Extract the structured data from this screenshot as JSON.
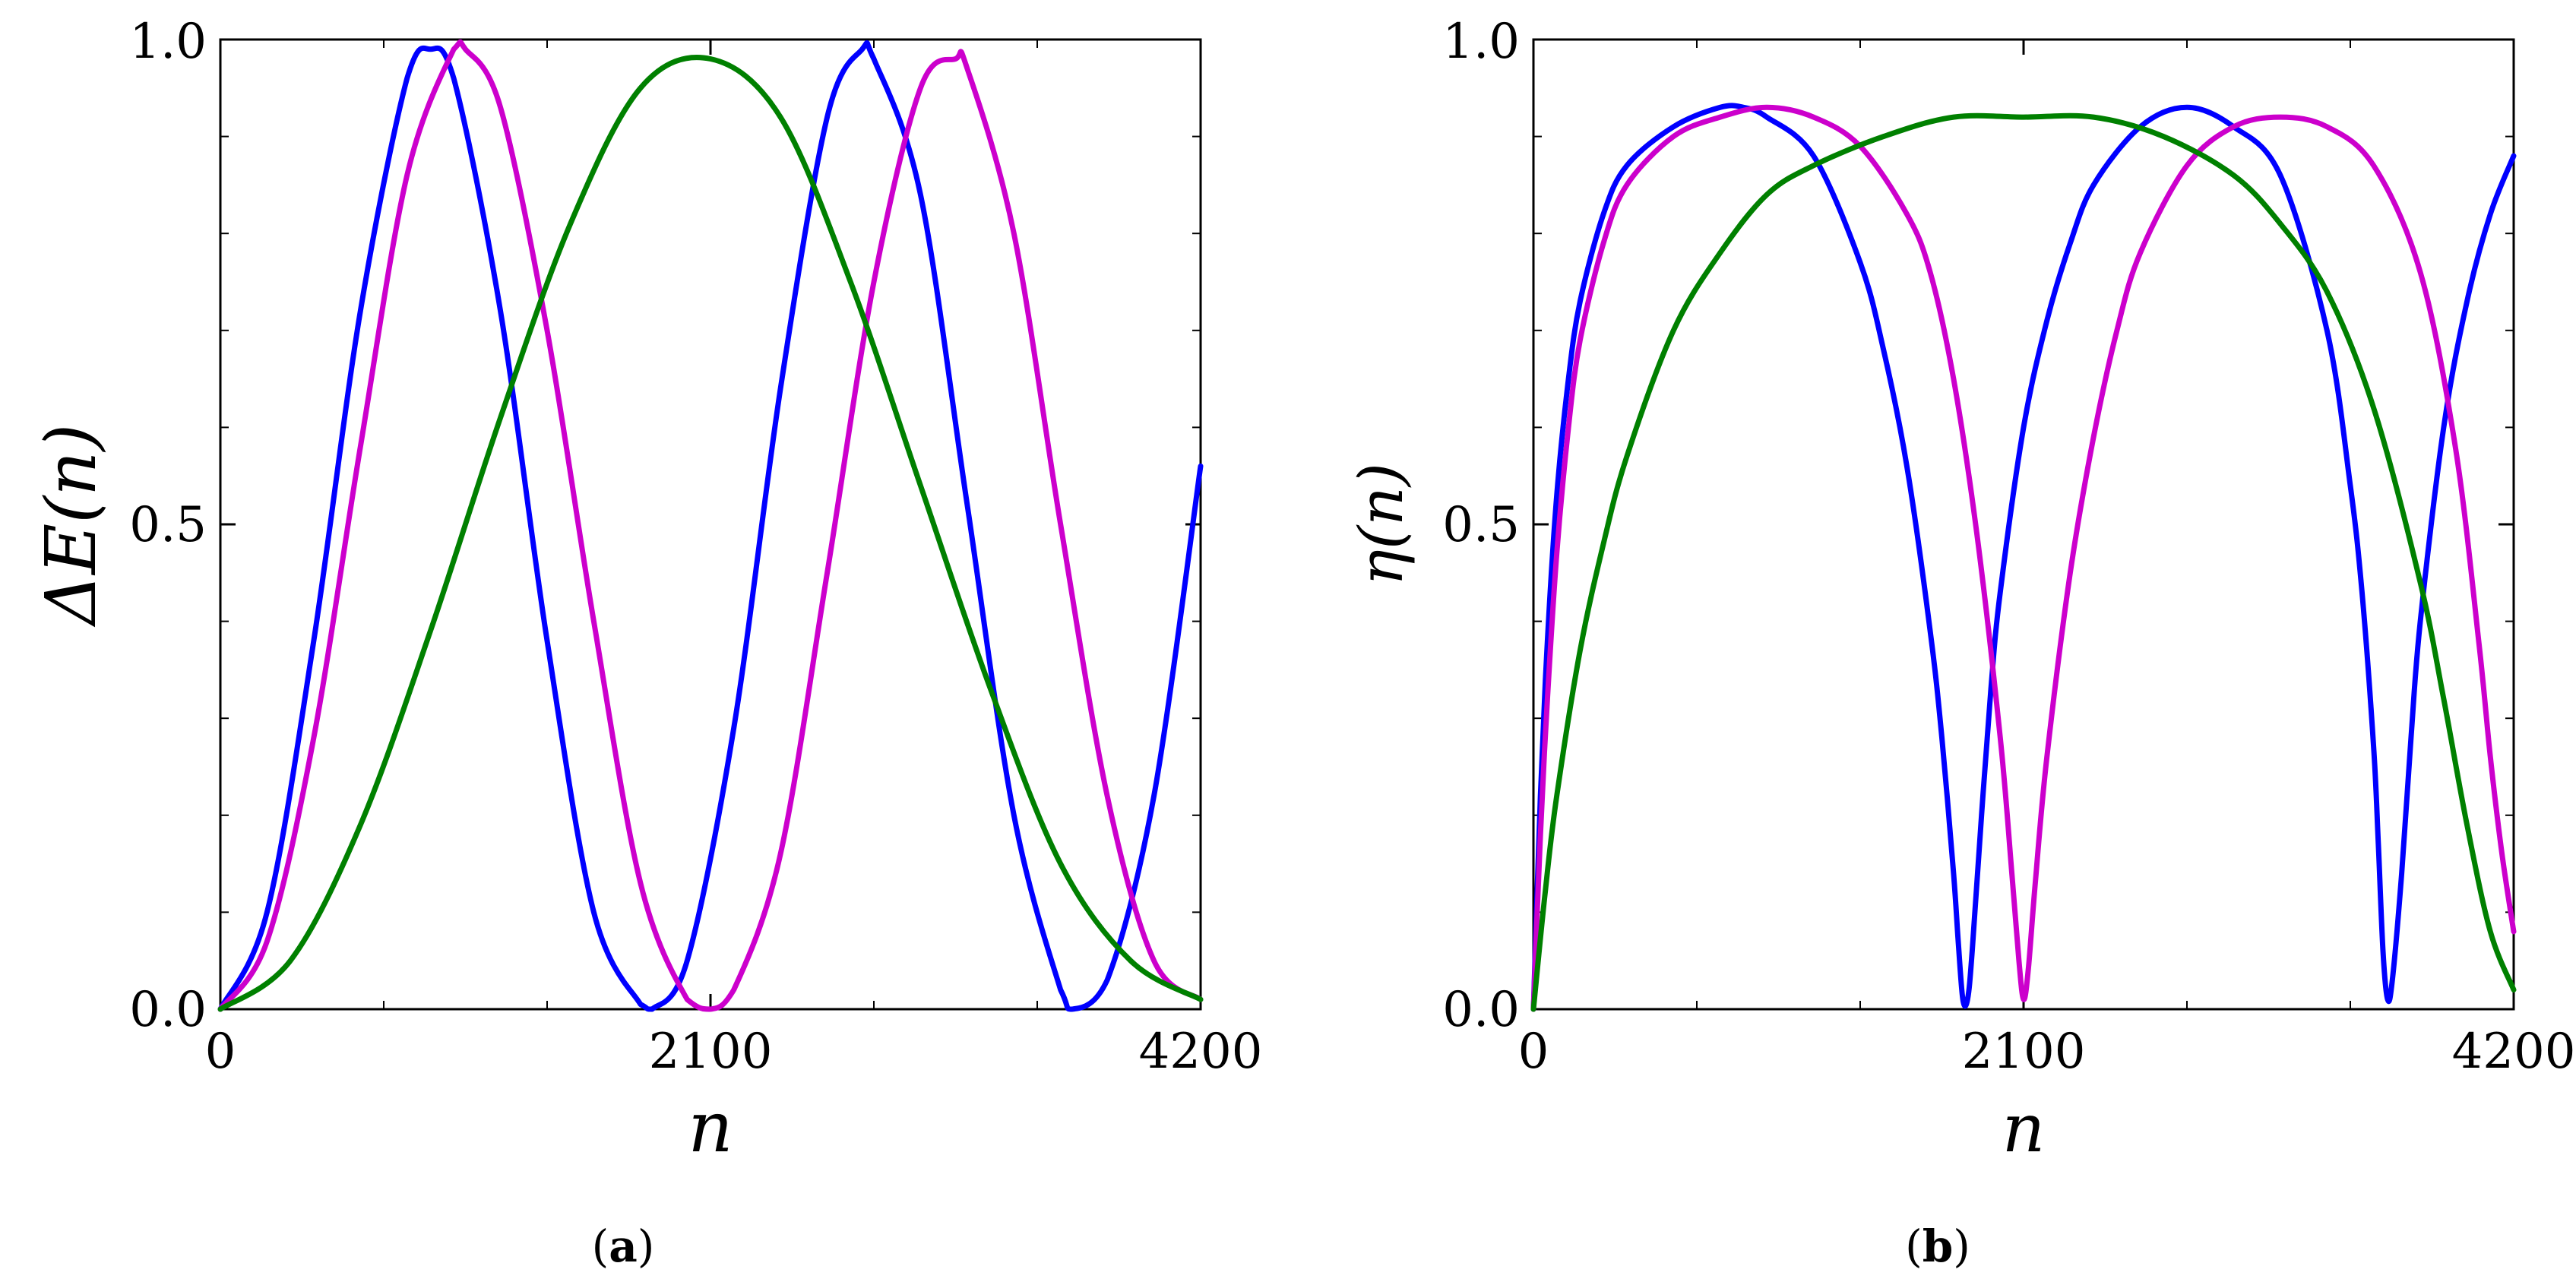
{
  "chart_data": [
    {
      "type": "line",
      "panel_label": "a",
      "ylabel": "ΔE(n)",
      "xlabel": "n",
      "xlim": [
        0,
        4200
      ],
      "ylim": [
        0,
        1
      ],
      "x_ticks": [
        "0",
        "2100",
        "4200"
      ],
      "y_ticks": [
        "0.0",
        "0.5",
        "1.0"
      ],
      "grid": false,
      "series": [
        {
          "color": "#0000ff",
          "x": [
            0,
            200,
            400,
            600,
            800,
            900,
            1000,
            1200,
            1400,
            1600,
            1800,
            1850,
            2000,
            2200,
            2400,
            2600,
            2750,
            2800,
            3000,
            3200,
            3400,
            3600,
            3650,
            3800,
            4000,
            4200
          ],
          "y": [
            0,
            0.1,
            0.38,
            0.72,
            0.96,
            0.99,
            0.96,
            0.72,
            0.38,
            0.1,
            0.005,
            0,
            0.05,
            0.29,
            0.64,
            0.92,
            0.99,
            0.98,
            0.84,
            0.52,
            0.2,
            0.02,
            0,
            0.03,
            0.22,
            0.56
          ]
        },
        {
          "color": "#cc00cc",
          "x": [
            0,
            200,
            400,
            600,
            800,
            1000,
            1050,
            1200,
            1400,
            1600,
            1800,
            2000,
            2100,
            2200,
            2400,
            2600,
            2800,
            3000,
            3150,
            3200,
            3400,
            3600,
            3800,
            4000,
            4200
          ],
          "y": [
            0,
            0.07,
            0.28,
            0.58,
            0.86,
            0.99,
            0.99,
            0.93,
            0.7,
            0.4,
            0.13,
            0.01,
            0,
            0.02,
            0.16,
            0.45,
            0.75,
            0.95,
            0.98,
            0.97,
            0.8,
            0.5,
            0.22,
            0.05,
            0.01
          ]
        },
        {
          "color": "#008000",
          "x": [
            0,
            300,
            600,
            900,
            1200,
            1500,
            1800,
            2100,
            2400,
            2700,
            3000,
            3300,
            3600,
            3900,
            4200
          ],
          "y": [
            0,
            0.05,
            0.19,
            0.39,
            0.61,
            0.81,
            0.95,
            0.98,
            0.92,
            0.75,
            0.54,
            0.33,
            0.15,
            0.05,
            0.01
          ]
        }
      ]
    },
    {
      "type": "line",
      "panel_label": "b",
      "ylabel": "η(n)",
      "xlabel": "n",
      "xlim": [
        0,
        4200
      ],
      "ylim": [
        0,
        1
      ],
      "x_ticks": [
        "0",
        "2100",
        "4200"
      ],
      "y_ticks": [
        "0.0",
        "0.5",
        "1.0"
      ],
      "grid": false,
      "series": [
        {
          "color": "#0000ff",
          "x": [
            0,
            30,
            60,
            100,
            150,
            200,
            300,
            400,
            600,
            800,
            900,
            1000,
            1200,
            1400,
            1500,
            1600,
            1700,
            1750,
            1800,
            1820,
            1840,
            1860,
            1880,
            1920,
            1960,
            2000,
            2100,
            2200,
            2300,
            2400,
            2600,
            2800,
            3000,
            3200,
            3400,
            3500,
            3550,
            3600,
            3620,
            3640,
            3660,
            3680,
            3720,
            3760,
            3800,
            3900,
            4000,
            4100,
            4200
          ],
          "y": [
            0,
            0.22,
            0.38,
            0.53,
            0.65,
            0.73,
            0.82,
            0.87,
            0.91,
            0.93,
            0.93,
            0.92,
            0.88,
            0.77,
            0.68,
            0.56,
            0.39,
            0.28,
            0.14,
            0.07,
            0.01,
            0.01,
            0.06,
            0.2,
            0.33,
            0.43,
            0.6,
            0.71,
            0.79,
            0.85,
            0.91,
            0.93,
            0.91,
            0.86,
            0.7,
            0.54,
            0.43,
            0.27,
            0.17,
            0.06,
            0.01,
            0.03,
            0.14,
            0.28,
            0.4,
            0.6,
            0.73,
            0.82,
            0.88
          ]
        },
        {
          "color": "#cc00cc",
          "x": [
            0,
            30,
            60,
            100,
            150,
            200,
            300,
            400,
            600,
            800,
            1000,
            1200,
            1400,
            1600,
            1700,
            1800,
            1900,
            2000,
            2050,
            2080,
            2100,
            2120,
            2150,
            2200,
            2300,
            2400,
            2500,
            2600,
            2800,
            3000,
            3200,
            3400,
            3600,
            3800,
            3950,
            4050,
            4100,
            4150,
            4200
          ],
          "y": [
            0,
            0.18,
            0.32,
            0.47,
            0.6,
            0.69,
            0.79,
            0.85,
            0.9,
            0.92,
            0.93,
            0.92,
            0.89,
            0.82,
            0.76,
            0.65,
            0.49,
            0.28,
            0.14,
            0.05,
            0.01,
            0.04,
            0.13,
            0.26,
            0.45,
            0.59,
            0.7,
            0.78,
            0.87,
            0.91,
            0.92,
            0.91,
            0.87,
            0.76,
            0.58,
            0.38,
            0.26,
            0.16,
            0.08
          ]
        },
        {
          "color": "#008000",
          "x": [
            0,
            50,
            100,
            200,
            300,
            400,
            600,
            800,
            1000,
            1200,
            1500,
            1800,
            2100,
            2400,
            2700,
            3000,
            3200,
            3400,
            3600,
            3800,
            3900,
            4000,
            4100,
            4200
          ],
          "y": [
            0,
            0.12,
            0.22,
            0.37,
            0.48,
            0.57,
            0.7,
            0.78,
            0.84,
            0.87,
            0.9,
            0.92,
            0.92,
            0.92,
            0.9,
            0.86,
            0.81,
            0.74,
            0.62,
            0.44,
            0.32,
            0.19,
            0.08,
            0.02
          ]
        }
      ]
    }
  ]
}
